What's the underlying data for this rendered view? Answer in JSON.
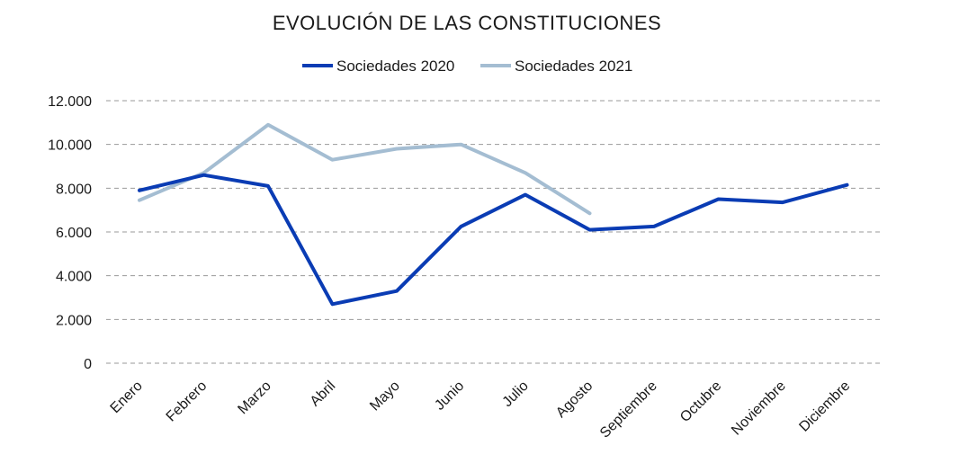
{
  "chart_data": {
    "type": "line",
    "title": "EVOLUCIÓN DE LAS CONSTITUCIONES",
    "xlabel": "",
    "ylabel": "",
    "categories": [
      "Enero",
      "Febrero",
      "Marzo",
      "Abril",
      "Mayo",
      "Junio",
      "Julio",
      "Agosto",
      "Septiembre",
      "Octubre",
      "Noviembre",
      "Diciembre"
    ],
    "ylim": [
      0,
      12000
    ],
    "yticks": [
      0,
      2000,
      4000,
      6000,
      8000,
      10000,
      12000
    ],
    "ytick_labels": [
      "0",
      "2.000",
      "4.000",
      "6.000",
      "8.000",
      "10.000",
      "12.000"
    ],
    "grid": true,
    "legend_position": "top-center",
    "series": [
      {
        "name": "Sociedades 2020",
        "color": "#0a3cb4",
        "values": [
          7900,
          8600,
          8100,
          2700,
          3300,
          6250,
          7700,
          6100,
          6250,
          7500,
          7350,
          8150
        ]
      },
      {
        "name": "Sociedades 2021",
        "color": "#a4bdd2",
        "values": [
          7450,
          8700,
          10900,
          9300,
          9800,
          10000,
          8700,
          6850,
          null,
          null,
          null,
          null
        ]
      }
    ]
  }
}
